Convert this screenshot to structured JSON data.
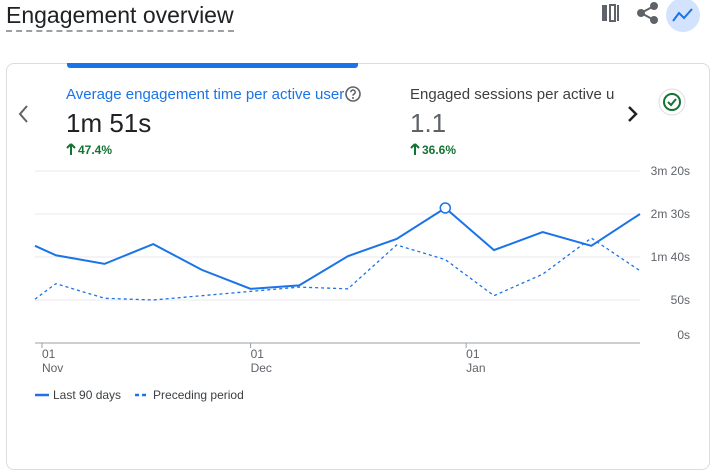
{
  "header": {
    "title": "Engagement overview"
  },
  "metrics": [
    {
      "label": "Average engagement time per active user",
      "value": "1m 51s",
      "change": "47.4%"
    },
    {
      "label": "Engaged sessions per active us",
      "value": "1.1",
      "change": "36.6%"
    }
  ],
  "chart_data": {
    "type": "line",
    "x": [
      -1,
      2,
      9,
      16,
      23,
      30,
      37,
      44,
      51,
      58,
      65,
      72,
      79,
      86
    ],
    "xlim": [
      -1,
      86
    ],
    "xticks": [
      {
        "value": 0,
        "label": "01 Nov"
      },
      {
        "value": 30,
        "label": "01 Dec"
      },
      {
        "value": 61,
        "label": "01 Jan"
      }
    ],
    "ylim": [
      0,
      200
    ],
    "yticks": [
      {
        "value": 0,
        "label": "0s"
      },
      {
        "value": 50,
        "label": "50s"
      },
      {
        "value": 100,
        "label": "1m 40s"
      },
      {
        "value": 150,
        "label": "2m 30s"
      },
      {
        "value": 200,
        "label": "3m 20s"
      }
    ],
    "grid": true,
    "series": [
      {
        "name": "Last 90 days",
        "color": "#1a73e8",
        "style": "solid",
        "values": [
          113,
          102,
          92,
          115,
          85,
          63,
          67,
          101,
          121,
          157,
          108,
          129,
          113,
          150
        ]
      },
      {
        "name": "Preceding period",
        "color": "#1a73e8",
        "style": "dashed",
        "values": [
          51,
          69,
          52,
          50,
          55,
          60,
          65,
          63,
          114,
          97,
          55,
          80,
          122,
          84
        ]
      }
    ]
  }
}
